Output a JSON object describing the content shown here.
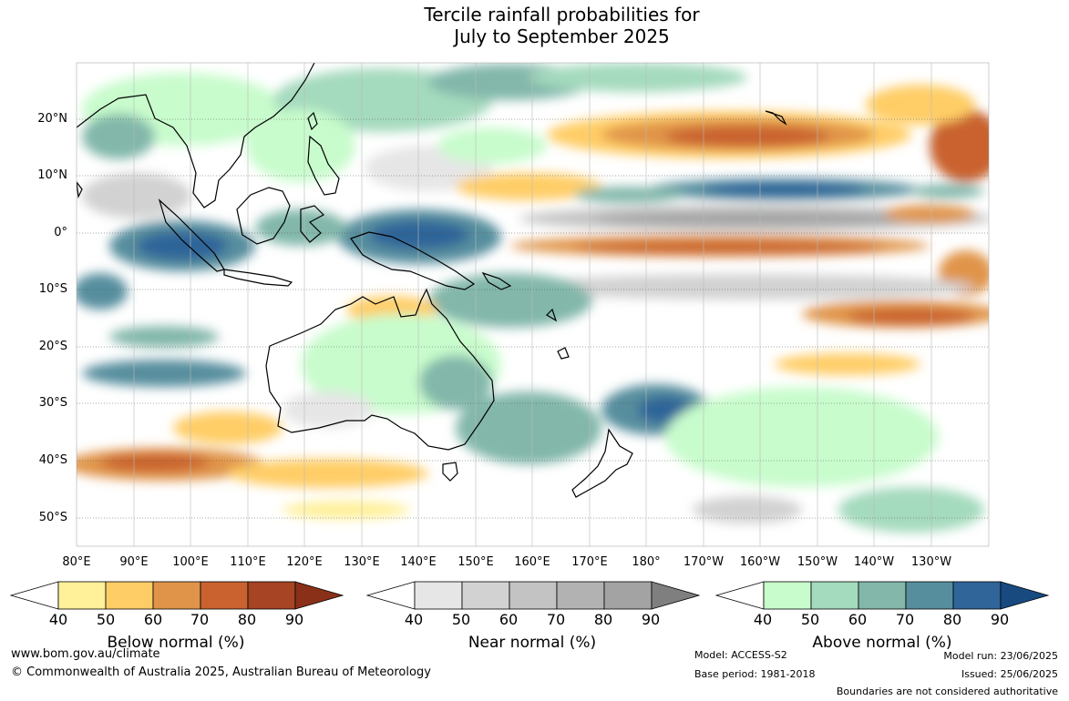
{
  "title": {
    "line1": "Tercile rainfall probabilities for",
    "line2": "July to September 2025"
  },
  "map": {
    "lat_labels": [
      "20°N",
      "10°N",
      "0°",
      "10°S",
      "20°S",
      "30°S",
      "40°S",
      "50°S"
    ],
    "lon_labels": [
      "80°E",
      "90°E",
      "100°E",
      "110°E",
      "120°E",
      "130°E",
      "140°E",
      "150°E",
      "160°E",
      "170°E",
      "180°",
      "170°W",
      "160°W",
      "150°W",
      "140°W",
      "130°W"
    ],
    "land_color": "#c6ffc4"
  },
  "legends": [
    {
      "id": "below",
      "label": "Below normal (%)",
      "ticks": [
        "40",
        "50",
        "60",
        "70",
        "80",
        "90"
      ],
      "colors": [
        "#fff09a",
        "#ffcd66",
        "#e0944a",
        "#c9622f",
        "#a64424",
        "#8a3019"
      ]
    },
    {
      "id": "near",
      "label": "Near normal (%)",
      "ticks": [
        "40",
        "50",
        "60",
        "70",
        "80",
        "90"
      ],
      "colors": [
        "#e6e6e6",
        "#d2d2d2",
        "#c3c3c3",
        "#b2b2b2",
        "#a3a3a3",
        "#7f7f7f"
      ]
    },
    {
      "id": "above",
      "label": "Above normal (%)",
      "ticks": [
        "40",
        "50",
        "60",
        "70",
        "80",
        "90"
      ],
      "colors": [
        "#c8fccc",
        "#a4dabd",
        "#82b7aa",
        "#568e9e",
        "#2f6599",
        "#184a80"
      ]
    }
  ],
  "footer": {
    "website": "www.bom.gov.au/climate",
    "copyright": "© Commonwealth of Australia 2025, Australian Bureau of Meteorology",
    "model": "Model: ACCESS-S2",
    "base_period": "Base period: 1981-2018",
    "model_run": "Model run: 23/06/2025",
    "issued": "Issued: 25/06/2025",
    "disclaimer": "Boundaries are not considered authoritative"
  }
}
